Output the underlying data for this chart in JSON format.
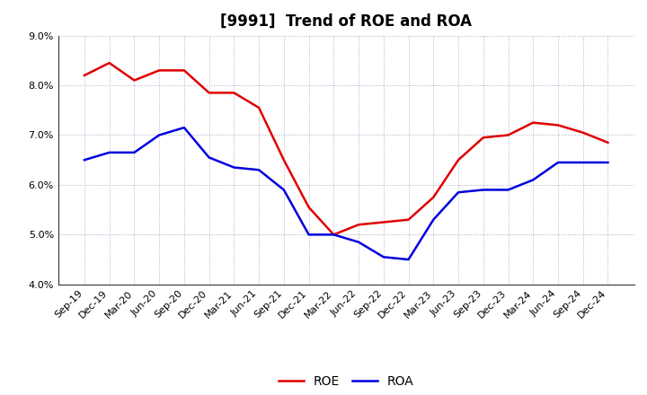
{
  "title": "[9991]  Trend of ROE and ROA",
  "x_labels": [
    "Sep-19",
    "Dec-19",
    "Mar-20",
    "Jun-20",
    "Sep-20",
    "Dec-20",
    "Mar-21",
    "Jun-21",
    "Sep-21",
    "Dec-21",
    "Mar-22",
    "Jun-22",
    "Sep-22",
    "Dec-22",
    "Mar-23",
    "Jun-23",
    "Sep-23",
    "Dec-23",
    "Mar-24",
    "Jun-24",
    "Sep-24",
    "Dec-24"
  ],
  "roe": [
    8.2,
    8.45,
    8.1,
    8.3,
    8.3,
    7.85,
    7.85,
    7.55,
    6.5,
    5.55,
    5.0,
    5.2,
    5.25,
    5.3,
    5.75,
    6.5,
    6.95,
    7.0,
    7.25,
    7.2,
    7.05,
    6.85
  ],
  "roa": [
    6.5,
    6.65,
    6.65,
    7.0,
    7.15,
    6.55,
    6.35,
    6.3,
    5.9,
    5.0,
    5.0,
    4.85,
    4.55,
    4.5,
    5.3,
    5.85,
    5.9,
    5.9,
    6.1,
    6.45,
    6.45,
    6.45
  ],
  "roe_color": "#e00000",
  "roa_color": "#0000e0",
  "ylim": [
    4.0,
    9.0
  ],
  "yticks": [
    4.0,
    5.0,
    6.0,
    7.0,
    8.0,
    9.0
  ],
  "background_color": "#ffffff",
  "grid_color": "#aaaacc",
  "title_fontsize": 12,
  "legend_fontsize": 10,
  "tick_fontsize": 8,
  "line_width": 1.8
}
